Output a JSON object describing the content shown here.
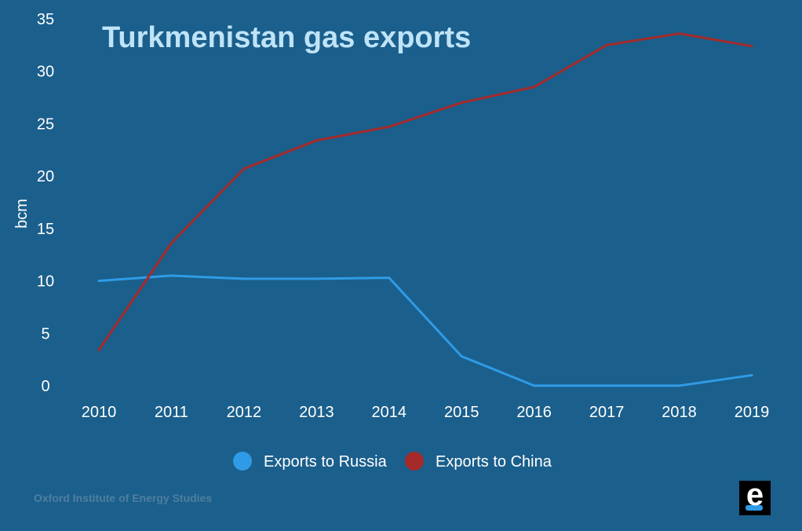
{
  "chart_data": {
    "type": "line",
    "title": "Turkmenistan gas exports",
    "ylabel": "bcm",
    "xlabel": "",
    "categories": [
      "2010",
      "2011",
      "2012",
      "2013",
      "2014",
      "2015",
      "2016",
      "2017",
      "2018",
      "2019"
    ],
    "yticks": [
      "0",
      "5",
      "10",
      "15",
      "20",
      "25",
      "30",
      "35"
    ],
    "ylim": [
      0,
      35
    ],
    "grid": false,
    "legend_position": "bottom",
    "series": [
      {
        "name": "Exports to Russia",
        "color": "#2f9be6",
        "values": [
          10.0,
          10.5,
          10.2,
          10.2,
          10.3,
          2.8,
          0.0,
          0.0,
          0.0,
          1.0
        ]
      },
      {
        "name": "Exports to China",
        "color": "#a52a2a",
        "values": [
          3.4,
          13.6,
          20.7,
          23.4,
          24.7,
          27.0,
          28.5,
          32.5,
          33.6,
          32.4
        ]
      }
    ]
  },
  "source": "Oxford Institute of Energy Studies",
  "logo": {
    "letter": "e",
    "background": "#000000",
    "accent": "#2f9be6"
  },
  "colors": {
    "background": "#1b5f8c",
    "title": "#bfe3f7"
  }
}
